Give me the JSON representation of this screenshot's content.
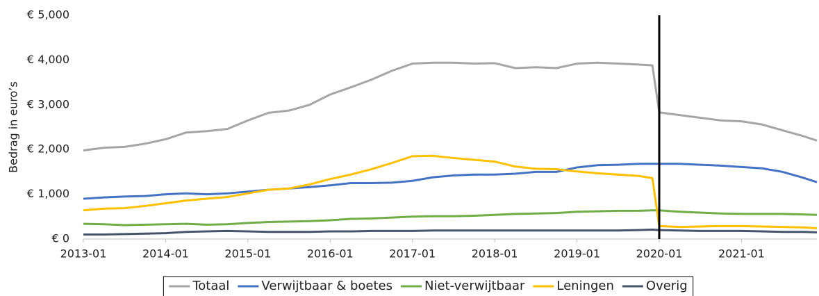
{
  "chart_data": {
    "type": "line",
    "y_label": "Bedrag in euro’s",
    "x": [
      "2013-01",
      "2013-04",
      "2013-07",
      "2013-10",
      "2014-01",
      "2014-04",
      "2014-07",
      "2014-10",
      "2015-01",
      "2015-04",
      "2015-07",
      "2015-10",
      "2016-01",
      "2016-04",
      "2016-07",
      "2016-10",
      "2017-01",
      "2017-04",
      "2017-07",
      "2017-10",
      "2018-01",
      "2018-04",
      "2018-07",
      "2018-10",
      "2019-01",
      "2019-04",
      "2019-07",
      "2019-10",
      "2019-12",
      "2020-01",
      "2020-04",
      "2020-07",
      "2020-10",
      "2021-01",
      "2021-04",
      "2021-07",
      "2021-10",
      "2021-12"
    ],
    "xlim": [
      "2013-01",
      "2021-12"
    ],
    "xticks": [
      "2013-01",
      "2014-01",
      "2015-01",
      "2016-01",
      "2017-01",
      "2018-01",
      "2019-01",
      "2020-01",
      "2021-01"
    ],
    "ylim": [
      0,
      5000
    ],
    "yticks": [
      {
        "value": 0,
        "label": "€ 0"
      },
      {
        "value": 1000,
        "label": "€ 1,000"
      },
      {
        "value": 2000,
        "label": "€ 2,000"
      },
      {
        "value": 3000,
        "label": "€ 3,000"
      },
      {
        "value": 4000,
        "label": "€ 4,000"
      },
      {
        "value": 5000,
        "label": "€ 5,000"
      }
    ],
    "vline": "2020-01",
    "vline_color": "#000000",
    "series": [
      {
        "name": "Totaal",
        "color": "#a5a5a5",
        "values": [
          1980,
          2040,
          2060,
          2130,
          2230,
          2380,
          2410,
          2460,
          2650,
          2820,
          2870,
          3000,
          3230,
          3390,
          3560,
          3760,
          3920,
          3940,
          3940,
          3920,
          3930,
          3820,
          3840,
          3820,
          3920,
          3940,
          3920,
          3900,
          3880,
          2830,
          2770,
          2710,
          2650,
          2630,
          2560,
          2430,
          2300,
          2200
        ]
      },
      {
        "name": "Verwijtbaar & boetes",
        "color": "#4472c4",
        "values": [
          900,
          930,
          950,
          960,
          1000,
          1020,
          1000,
          1020,
          1060,
          1100,
          1130,
          1160,
          1200,
          1250,
          1250,
          1260,
          1300,
          1380,
          1420,
          1440,
          1440,
          1460,
          1500,
          1500,
          1600,
          1650,
          1660,
          1680,
          1680,
          1680,
          1680,
          1660,
          1640,
          1610,
          1580,
          1500,
          1370,
          1270
        ]
      },
      {
        "name": "Niet-verwijtbaar",
        "color": "#70ad47",
        "values": [
          340,
          330,
          310,
          320,
          330,
          340,
          320,
          330,
          360,
          380,
          390,
          400,
          420,
          450,
          460,
          480,
          500,
          510,
          510,
          520,
          540,
          560,
          570,
          580,
          610,
          620,
          630,
          630,
          640,
          640,
          610,
          590,
          570,
          560,
          560,
          560,
          550,
          540
        ]
      },
      {
        "name": "Leningen",
        "color": "#ffc000",
        "values": [
          640,
          680,
          690,
          740,
          800,
          860,
          900,
          940,
          1020,
          1100,
          1130,
          1220,
          1340,
          1440,
          1560,
          1700,
          1850,
          1860,
          1810,
          1770,
          1730,
          1620,
          1570,
          1560,
          1510,
          1470,
          1440,
          1410,
          1360,
          290,
          270,
          280,
          290,
          290,
          280,
          270,
          260,
          240
        ]
      },
      {
        "name": "Overig",
        "color": "#44546a",
        "values": [
          100,
          100,
          110,
          120,
          130,
          160,
          170,
          180,
          170,
          160,
          160,
          160,
          170,
          170,
          180,
          180,
          180,
          190,
          190,
          190,
          190,
          190,
          190,
          190,
          190,
          190,
          190,
          200,
          210,
          200,
          190,
          180,
          180,
          180,
          170,
          160,
          160,
          150
        ]
      }
    ]
  }
}
